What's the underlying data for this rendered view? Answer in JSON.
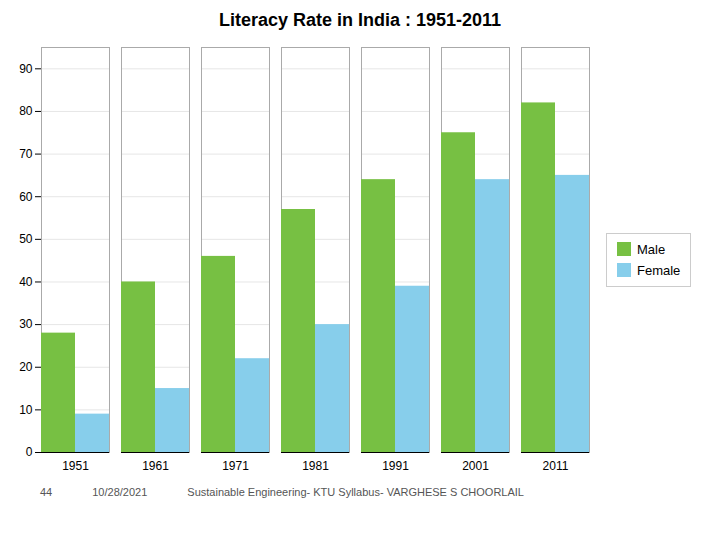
{
  "chart_data": {
    "type": "bar",
    "title": "Literacy Rate in India : 1951-2011",
    "categories": [
      "1951",
      "1961",
      "1971",
      "1981",
      "1991",
      "2001",
      "2011"
    ],
    "series": [
      {
        "name": "Male",
        "color": "#77C043",
        "values": [
          28,
          40,
          46,
          57,
          64,
          75,
          82
        ]
      },
      {
        "name": "Female",
        "color": "#87CEEB",
        "values": [
          9,
          15,
          22,
          30,
          39,
          64,
          65
        ]
      }
    ],
    "ylim": [
      0,
      95
    ],
    "yticks": [
      0,
      10,
      20,
      30,
      40,
      50,
      60,
      70,
      80,
      90
    ],
    "grid": true,
    "legend": "right",
    "annotations": [
      "44",
      "10/28/2021",
      "Sustainable Engineering- KTU Syllabus- VARGHESE S CHOORLAIL"
    ]
  }
}
